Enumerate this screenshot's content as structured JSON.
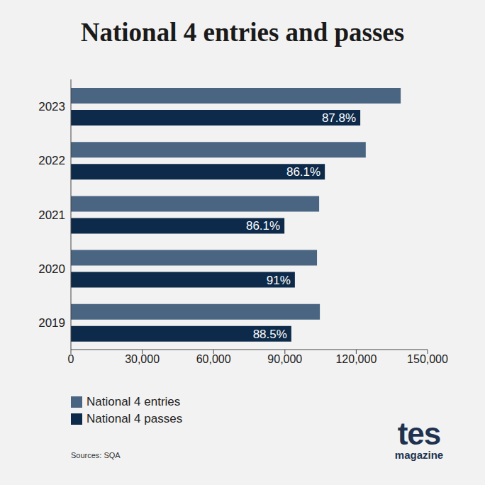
{
  "chart_data": {
    "type": "bar",
    "title": "National 4 entries and passes",
    "orientation": "horizontal",
    "categories": [
      "2023",
      "2022",
      "2021",
      "2020",
      "2019"
    ],
    "series": [
      {
        "name": "National 4 entries",
        "color": "#4a6582",
        "values": [
          138700,
          124000,
          104400,
          103500,
          104700
        ]
      },
      {
        "name": "National 4 passes",
        "color": "#0d2a4a",
        "values": [
          121700,
          106800,
          89800,
          94200,
          92700
        ],
        "rate_labels": [
          "87.8%",
          "86.1%",
          "86.1%",
          "91%",
          "88.5%"
        ]
      }
    ],
    "xlim": [
      0,
      150000
    ],
    "xticks": [
      0,
      {
        "value": 30000,
        "label": "30,000"
      },
      {
        "value": 60000,
        "label": "60,000"
      },
      {
        "value": 90000,
        "label": "90,000"
      },
      {
        "value": 120000,
        "label": "120,000"
      },
      {
        "value": 150000,
        "label": "150,000"
      }
    ],
    "grid": false,
    "legend": "bottom left",
    "annotations": [
      "Sources: SQA"
    ],
    "logo": [
      "tes",
      "magazine"
    ]
  }
}
